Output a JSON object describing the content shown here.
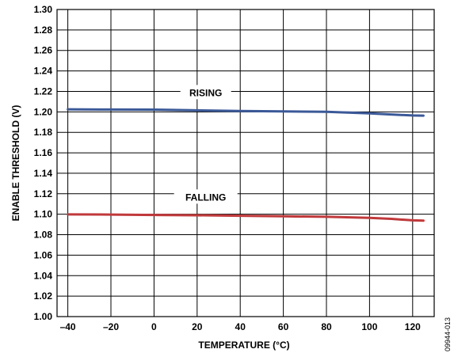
{
  "chart_data": {
    "type": "line",
    "xlabel": "TEMPERATURE (°C)",
    "ylabel": "ENABLE THRESHOLD (V)",
    "xlim": [
      -45,
      130
    ],
    "ylim": [
      1.0,
      1.3
    ],
    "x_ticks": [
      -40,
      -20,
      0,
      20,
      40,
      60,
      80,
      100,
      120
    ],
    "x_tick_labels": [
      "–40",
      "–20",
      "0",
      "20",
      "40",
      "60",
      "80",
      "100",
      "120"
    ],
    "y_ticks": [
      1.0,
      1.02,
      1.04,
      1.06,
      1.08,
      1.1,
      1.12,
      1.14,
      1.16,
      1.18,
      1.2,
      1.22,
      1.24,
      1.26,
      1.28,
      1.3
    ],
    "y_tick_labels": [
      "1.00",
      "1.02",
      "1.04",
      "1.06",
      "1.08",
      "1.10",
      "1.12",
      "1.14",
      "1.16",
      "1.18",
      "1.20",
      "1.22",
      "1.24",
      "1.26",
      "1.28",
      "1.30"
    ],
    "grid": true,
    "series": [
      {
        "name": "RISING",
        "color": "#3b5998",
        "x": [
          -40,
          -20,
          0,
          20,
          40,
          60,
          80,
          100,
          110,
          120,
          125
        ],
        "y": [
          1.2025,
          1.2023,
          1.2022,
          1.2015,
          1.2008,
          1.2005,
          1.2,
          1.1985,
          1.1975,
          1.1965,
          1.1963
        ]
      },
      {
        "name": "FALLING",
        "color": "#c0393b",
        "x": [
          -40,
          -20,
          0,
          20,
          40,
          60,
          80,
          100,
          110,
          120,
          125
        ],
        "y": [
          1.0998,
          1.0997,
          1.0993,
          1.099,
          1.0985,
          1.098,
          1.0975,
          1.0965,
          1.0955,
          1.094,
          1.0937
        ]
      }
    ],
    "annotations": [
      "RISING",
      "FALLING"
    ]
  },
  "figure_id": "09944-013"
}
